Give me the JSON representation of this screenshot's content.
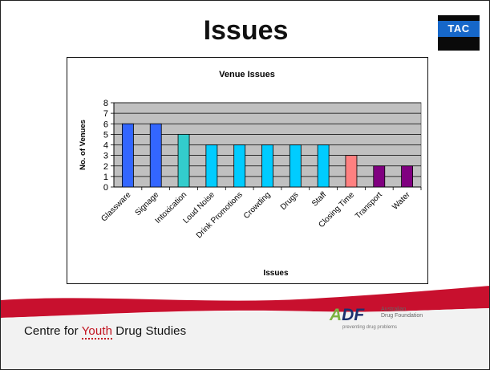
{
  "slide": {
    "title": "Issues"
  },
  "logos": {
    "tac": "TAC",
    "adf_mark_a": "A",
    "adf_mark_rest": "DF",
    "adf_name": [
      "Australian",
      "Drug Foundation"
    ],
    "adf_tagline": "preventing drug problems",
    "cyds_prefix": "Centre for ",
    "cyds_youth": "Youth",
    "cyds_suffix": " Drug Studies"
  },
  "colors": {
    "plot_bg": "#c0c0c0",
    "blue": "#3366ff",
    "teal": "#33cccc",
    "cyan": "#00ccff",
    "pink": "#ff8080",
    "purple": "#800080",
    "footer_red": "#c8102e"
  },
  "chart_data": {
    "type": "bar",
    "title": "Venue Issues",
    "xlabel": "Issues",
    "ylabel": "No. of Venues",
    "ylim": [
      0,
      8
    ],
    "yticks": [
      "0",
      "1",
      "2",
      "3",
      "4",
      "5",
      "6",
      "7",
      "8"
    ],
    "grid": true,
    "categories": [
      "Glassware",
      "Signage",
      "Intoxication",
      "Loud Noise",
      "Drink Promotions",
      "Crowding",
      "Drugs",
      "Staff",
      "Closing Time",
      "Transport",
      "Water"
    ],
    "values": [
      6,
      6,
      5,
      4,
      4,
      4,
      4,
      4,
      3,
      2,
      2
    ],
    "bar_colors": [
      "#3366ff",
      "#3366ff",
      "#33cccc",
      "#00ccff",
      "#00ccff",
      "#00ccff",
      "#00ccff",
      "#00ccff",
      "#ff8080",
      "#800080",
      "#800080"
    ]
  }
}
